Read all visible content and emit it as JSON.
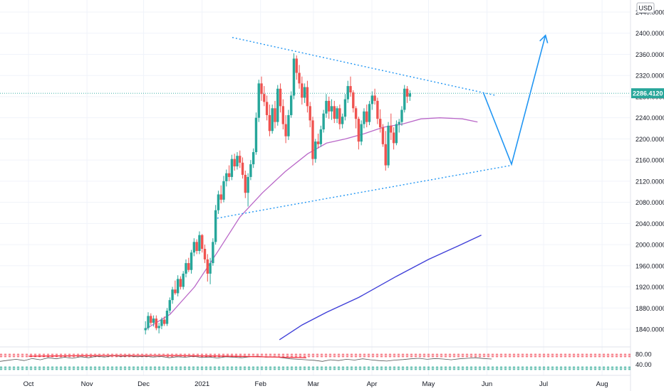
{
  "chart_data": {
    "type": "candlestick",
    "currency_label": "USD",
    "current_price": "2286.4120",
    "y_ticks": [
      "2440.0000",
      "2400.0000",
      "2360.0000",
      "2320.0000",
      "2280.0000",
      "2240.0000",
      "2200.0000",
      "2160.0000",
      "2120.0000",
      "2080.0000",
      "2040.0000",
      "2000.0000",
      "1960.0000",
      "1920.0000",
      "1880.0000",
      "1840.0000"
    ],
    "y_range": [
      1820,
      2460
    ],
    "x_labels": [
      "Oct",
      "Nov",
      "Dec",
      "2021",
      "Feb",
      "Mar",
      "Apr",
      "May",
      "Jun",
      "Jul",
      "Aug"
    ],
    "x_label_days": [
      0,
      31,
      61,
      92,
      123,
      151,
      182,
      212,
      243,
      273,
      304
    ],
    "candle_step_days": 1.43,
    "candles": [
      [
        1838,
        1855,
        1830,
        1842
      ],
      [
        1842,
        1872,
        1838,
        1865
      ],
      [
        1865,
        1870,
        1848,
        1852
      ],
      [
        1852,
        1866,
        1845,
        1860
      ],
      [
        1860,
        1866,
        1838,
        1842
      ],
      [
        1842,
        1852,
        1832,
        1846
      ],
      [
        1846,
        1862,
        1840,
        1858
      ],
      [
        1858,
        1864,
        1846,
        1850
      ],
      [
        1850,
        1880,
        1846,
        1875
      ],
      [
        1875,
        1900,
        1870,
        1895
      ],
      [
        1895,
        1920,
        1888,
        1915
      ],
      [
        1915,
        1932,
        1905,
        1908
      ],
      [
        1908,
        1942,
        1902,
        1935
      ],
      [
        1935,
        1940,
        1915,
        1920
      ],
      [
        1920,
        1950,
        1915,
        1945
      ],
      [
        1945,
        1972,
        1938,
        1965
      ],
      [
        1965,
        1975,
        1948,
        1952
      ],
      [
        1952,
        1990,
        1945,
        1985
      ],
      [
        1985,
        2012,
        1978,
        2005
      ],
      [
        2005,
        2010,
        1982,
        1988
      ],
      [
        1988,
        2025,
        1982,
        2018
      ],
      [
        2018,
        2020,
        1985,
        1992
      ],
      [
        1992,
        2000,
        1965,
        1972
      ],
      [
        1972,
        1982,
        1930,
        1945
      ],
      [
        1945,
        1975,
        1925,
        1965
      ],
      [
        1965,
        2012,
        1960,
        2005
      ],
      [
        2005,
        2075,
        2000,
        2065
      ],
      [
        2065,
        2102,
        2058,
        2095
      ],
      [
        2095,
        2112,
        2078,
        2085
      ],
      [
        2085,
        2130,
        2080,
        2120
      ],
      [
        2120,
        2142,
        2110,
        2135
      ],
      [
        2135,
        2150,
        2120,
        2128
      ],
      [
        2128,
        2170,
        2122,
        2162
      ],
      [
        2162,
        2172,
        2140,
        2148
      ],
      [
        2148,
        2175,
        2142,
        2168
      ],
      [
        2168,
        2178,
        2145,
        2155
      ],
      [
        2155,
        2165,
        2125,
        2132
      ],
      [
        2132,
        2140,
        2088,
        2098
      ],
      [
        2098,
        2135,
        2072,
        2128
      ],
      [
        2128,
        2160,
        2122,
        2152
      ],
      [
        2152,
        2182,
        2145,
        2175
      ],
      [
        2175,
        2250,
        2170,
        2240
      ],
      [
        2240,
        2312,
        2232,
        2305
      ],
      [
        2305,
        2318,
        2272,
        2285
      ],
      [
        2285,
        2300,
        2262,
        2270
      ],
      [
        2270,
        2282,
        2235,
        2245
      ],
      [
        2245,
        2265,
        2205,
        2215
      ],
      [
        2215,
        2265,
        2210,
        2258
      ],
      [
        2258,
        2272,
        2220,
        2232
      ],
      [
        2232,
        2302,
        2225,
        2295
      ],
      [
        2295,
        2305,
        2250,
        2262
      ],
      [
        2262,
        2275,
        2218,
        2228
      ],
      [
        2228,
        2245,
        2192,
        2205
      ],
      [
        2205,
        2255,
        2198,
        2245
      ],
      [
        2245,
        2290,
        2240,
        2282
      ],
      [
        2282,
        2362,
        2275,
        2352
      ],
      [
        2352,
        2358,
        2312,
        2325
      ],
      [
        2325,
        2340,
        2295,
        2305
      ],
      [
        2305,
        2318,
        2265,
        2278
      ],
      [
        2278,
        2305,
        2268,
        2298
      ],
      [
        2298,
        2310,
        2250,
        2262
      ],
      [
        2262,
        2270,
        2222,
        2235
      ],
      [
        2235,
        2242,
        2150,
        2162
      ],
      [
        2162,
        2200,
        2155,
        2195
      ],
      [
        2195,
        2210,
        2182,
        2190
      ],
      [
        2190,
        2225,
        2185,
        2218
      ],
      [
        2218,
        2255,
        2212,
        2248
      ],
      [
        2248,
        2285,
        2240,
        2272
      ],
      [
        2272,
        2280,
        2238,
        2252
      ],
      [
        2252,
        2275,
        2236,
        2262
      ],
      [
        2262,
        2272,
        2230,
        2238
      ],
      [
        2238,
        2262,
        2230,
        2258
      ],
      [
        2258,
        2265,
        2218,
        2228
      ],
      [
        2228,
        2248,
        2220,
        2242
      ],
      [
        2242,
        2285,
        2235,
        2275
      ],
      [
        2275,
        2310,
        2268,
        2300
      ],
      [
        2300,
        2318,
        2280,
        2288
      ],
      [
        2288,
        2292,
        2250,
        2258
      ],
      [
        2258,
        2262,
        2220,
        2238
      ],
      [
        2238,
        2242,
        2180,
        2195
      ],
      [
        2195,
        2235,
        2188,
        2228
      ],
      [
        2228,
        2258,
        2220,
        2252
      ],
      [
        2252,
        2265,
        2222,
        2232
      ],
      [
        2232,
        2272,
        2226,
        2266
      ],
      [
        2266,
        2290,
        2255,
        2282
      ],
      [
        2282,
        2295,
        2265,
        2272
      ],
      [
        2272,
        2278,
        2228,
        2238
      ],
      [
        2238,
        2256,
        2212,
        2222
      ],
      [
        2222,
        2228,
        2185,
        2190
      ],
      [
        2190,
        2215,
        2140,
        2150
      ],
      [
        2150,
        2232,
        2145,
        2225
      ],
      [
        2225,
        2248,
        2198,
        2212
      ],
      [
        2212,
        2222,
        2180,
        2192
      ],
      [
        2192,
        2235,
        2188,
        2228
      ],
      [
        2228,
        2238,
        2212,
        2232
      ],
      [
        2232,
        2262,
        2225,
        2255
      ],
      [
        2255,
        2302,
        2250,
        2295
      ],
      [
        2295,
        2300,
        2268,
        2280
      ],
      [
        2280,
        2292,
        2272,
        2286
      ]
    ],
    "ma_50": [
      [
        62,
        1840
      ],
      [
        75,
        1868
      ],
      [
        88,
        1920
      ],
      [
        100,
        1985
      ],
      [
        112,
        2052
      ],
      [
        124,
        2098
      ],
      [
        136,
        2138
      ],
      [
        148,
        2172
      ],
      [
        158,
        2192
      ],
      [
        168,
        2200
      ],
      [
        178,
        2210
      ],
      [
        188,
        2222
      ],
      [
        198,
        2228
      ],
      [
        208,
        2238
      ],
      [
        218,
        2240
      ],
      [
        230,
        2238
      ],
      [
        238,
        2232
      ]
    ],
    "ma_200": [
      [
        133,
        1820
      ],
      [
        145,
        1848
      ],
      [
        158,
        1872
      ],
      [
        175,
        1900
      ],
      [
        195,
        1940
      ],
      [
        212,
        1972
      ],
      [
        228,
        1998
      ],
      [
        240,
        2018
      ]
    ],
    "trendline_upper": [
      [
        108,
        2392
      ],
      [
        248,
        2282
      ]
    ],
    "trendline_lower": [
      [
        100,
        2050
      ],
      [
        256,
        2150
      ]
    ],
    "projection": [
      [
        241,
        2288
      ],
      [
        256,
        2152
      ],
      [
        274,
        2396
      ]
    ],
    "rsi": {
      "y_ticks": [
        "80.00",
        "40.00"
      ],
      "series": [
        52,
        56,
        60,
        55,
        63,
        58,
        66,
        62,
        68,
        64,
        70,
        66,
        72,
        69,
        74,
        71,
        73,
        70,
        72,
        69,
        71,
        66,
        70,
        68,
        72,
        67,
        69,
        65,
        70,
        68,
        66,
        70,
        72,
        68,
        70,
        66,
        62,
        60,
        58,
        56,
        52,
        58,
        55,
        60,
        57,
        62,
        58,
        55,
        53,
        57,
        59,
        62,
        64,
        60,
        63,
        61,
        58,
        62,
        64,
        66,
        63,
        61
      ]
    }
  }
}
